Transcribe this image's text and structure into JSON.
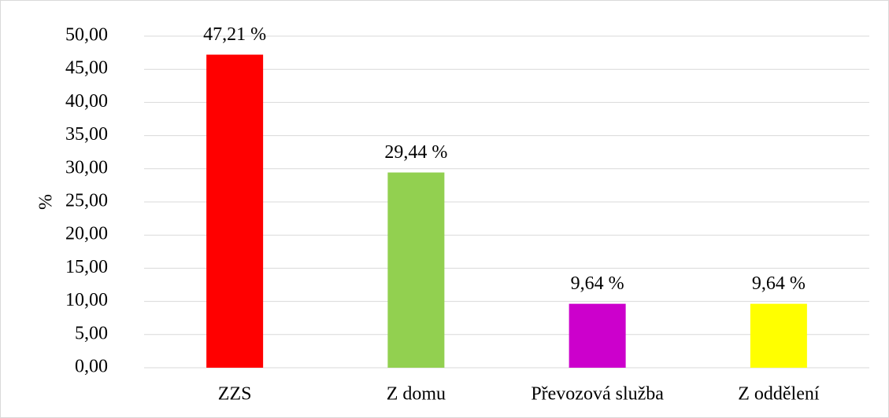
{
  "chart_data": {
    "type": "bar",
    "ylabel": "%",
    "categories": [
      "ZZS",
      "Z domu",
      "Převozová služba",
      "Z oddělení"
    ],
    "values": [
      47.21,
      29.44,
      9.64,
      9.64
    ],
    "value_labels": [
      "47,21 %",
      "29,44 %",
      "9,64 %",
      "9,64 %"
    ],
    "colors": [
      "#ff0000",
      "#92d050",
      "#cc00cc",
      "#ffff00"
    ],
    "ylim": [
      0,
      50
    ],
    "yticks": [
      {
        "value": 0,
        "label": "0,00"
      },
      {
        "value": 5,
        "label": "5,00"
      },
      {
        "value": 10,
        "label": "10,00"
      },
      {
        "value": 15,
        "label": "15,00"
      },
      {
        "value": 20,
        "label": "20,00"
      },
      {
        "value": 25,
        "label": "25,00"
      },
      {
        "value": 30,
        "label": "30,00"
      },
      {
        "value": 35,
        "label": "35,00"
      },
      {
        "value": 40,
        "label": "40,00"
      },
      {
        "value": 45,
        "label": "45,00"
      },
      {
        "value": 50,
        "label": "50,00"
      }
    ],
    "grid": true
  }
}
